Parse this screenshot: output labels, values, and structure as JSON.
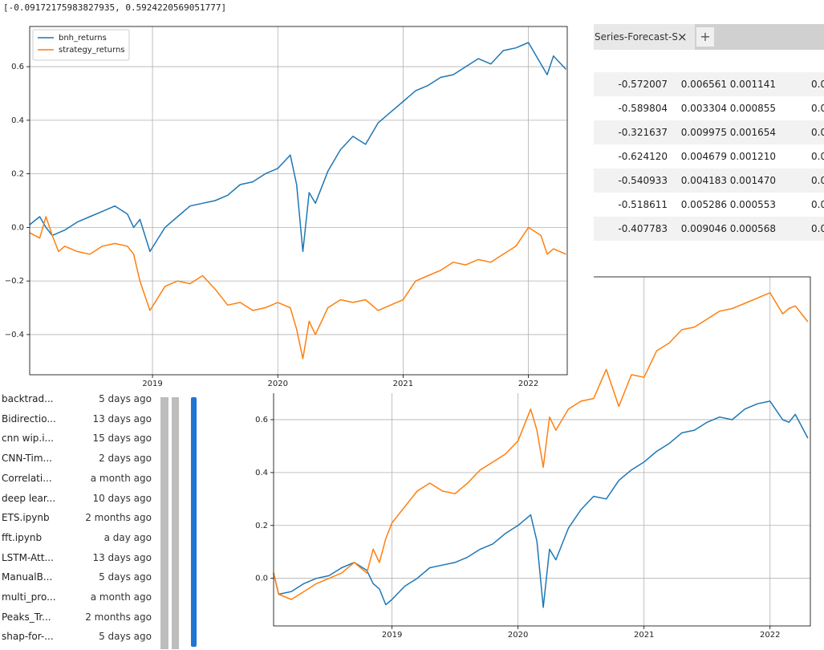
{
  "output_text": "[-0.09172175983827935, 0.5924220569051777]",
  "tab": {
    "title": "Series-Forecast-Se",
    "close": "×",
    "add": "+"
  },
  "table": {
    "rows": [
      [
        "-0.572007",
        "0.006561",
        "0.001141",
        "0.0"
      ],
      [
        "-0.589804",
        "0.003304",
        "0.000855",
        "0.0"
      ],
      [
        "-0.321637",
        "0.009975",
        "0.001654",
        "0.0"
      ],
      [
        "-0.624120",
        "0.004679",
        "0.001210",
        "0.0"
      ],
      [
        "-0.540933",
        "0.004183",
        "0.001470",
        "0.0"
      ],
      [
        "-0.518611",
        "0.005286",
        "0.000553",
        "0.0"
      ],
      [
        "-0.407783",
        "0.009046",
        "0.000568",
        "0.0"
      ]
    ]
  },
  "file_browser": {
    "files": [
      {
        "name": "backtrad...",
        "modified": "5 days ago"
      },
      {
        "name": "Bidirectio...",
        "modified": "13 days ago"
      },
      {
        "name": "cnn wip.i...",
        "modified": "15 days ago"
      },
      {
        "name": "CNN-Tim...",
        "modified": "2 days ago"
      },
      {
        "name": "Correlati...",
        "modified": "a month ago"
      },
      {
        "name": "deep lear...",
        "modified": "10 days ago"
      },
      {
        "name": "ETS.ipynb",
        "modified": "2 months ago"
      },
      {
        "name": "fft.ipynb",
        "modified": "a day ago"
      },
      {
        "name": "LSTM-Att...",
        "modified": "13 days ago"
      },
      {
        "name": "ManualB...",
        "modified": "5 days ago"
      },
      {
        "name": "multi_pro...",
        "modified": "a month ago"
      },
      {
        "name": "Peaks_Tr...",
        "modified": "2 months ago"
      },
      {
        "name": "shap-for-...",
        "modified": "5 days ago"
      }
    ]
  },
  "chart_data": [
    {
      "type": "line",
      "grid": true,
      "legend": "upper left",
      "xlim": [
        2018.02,
        2022.31
      ],
      "xticks": [
        2019,
        2020,
        2021,
        2022
      ],
      "ylim": [
        -0.55,
        0.75
      ],
      "yticks": [
        {
          "value": -0.4,
          "label": "−0.4"
        },
        {
          "value": -0.2,
          "label": "−0.2"
        },
        {
          "value": 0.0,
          "label": "0.0"
        },
        0.2,
        0.4,
        0.6
      ],
      "x": [
        2018.02,
        2018.1,
        2018.15,
        2018.2,
        2018.25,
        2018.3,
        2018.4,
        2018.5,
        2018.6,
        2018.7,
        2018.8,
        2018.85,
        2018.9,
        2018.98,
        2019.1,
        2019.2,
        2019.3,
        2019.4,
        2019.5,
        2019.6,
        2019.7,
        2019.8,
        2019.9,
        2020.0,
        2020.1,
        2020.15,
        2020.2,
        2020.25,
        2020.3,
        2020.4,
        2020.5,
        2020.6,
        2020.7,
        2020.8,
        2020.9,
        2021.0,
        2021.1,
        2021.2,
        2021.3,
        2021.4,
        2021.5,
        2021.6,
        2021.7,
        2021.8,
        2021.9,
        2022.0,
        2022.1,
        2022.15,
        2022.2,
        2022.3
      ],
      "series": [
        {
          "name": "bnh_returns",
          "color": "#1f77b4",
          "values": [
            0.01,
            0.04,
            0.0,
            -0.03,
            -0.02,
            -0.01,
            0.02,
            0.04,
            0.06,
            0.08,
            0.05,
            0.0,
            0.03,
            -0.09,
            0.0,
            0.04,
            0.08,
            0.09,
            0.1,
            0.12,
            0.16,
            0.17,
            0.2,
            0.22,
            0.27,
            0.16,
            -0.09,
            0.13,
            0.09,
            0.21,
            0.29,
            0.34,
            0.31,
            0.39,
            0.43,
            0.47,
            0.51,
            0.53,
            0.56,
            0.57,
            0.6,
            0.63,
            0.61,
            0.66,
            0.67,
            0.69,
            0.61,
            0.57,
            0.64,
            0.59
          ]
        },
        {
          "name": "strategy_returns",
          "color": "#ff7f0e",
          "values": [
            -0.02,
            -0.04,
            0.04,
            -0.03,
            -0.09,
            -0.07,
            -0.09,
            -0.1,
            -0.07,
            -0.06,
            -0.07,
            -0.1,
            -0.2,
            -0.31,
            -0.22,
            -0.2,
            -0.21,
            -0.18,
            -0.23,
            -0.29,
            -0.28,
            -0.31,
            -0.3,
            -0.28,
            -0.3,
            -0.38,
            -0.49,
            -0.35,
            -0.4,
            -0.3,
            -0.27,
            -0.28,
            -0.27,
            -0.31,
            -0.29,
            -0.27,
            -0.2,
            -0.18,
            -0.16,
            -0.13,
            -0.14,
            -0.12,
            -0.13,
            -0.1,
            -0.07,
            0.0,
            -0.03,
            -0.1,
            -0.08,
            -0.1
          ]
        }
      ]
    },
    {
      "type": "line",
      "grid": true,
      "xlim": [
        2018.06,
        2022.32
      ],
      "xticks": [
        2019,
        2020,
        2021,
        2022
      ],
      "ylim": [
        -0.18,
        1.14
      ],
      "yticks": [
        {
          "value": 0.0,
          "label": "0.0"
        },
        0.2,
        0.4,
        0.6
      ],
      "x": [
        2018.06,
        2018.1,
        2018.2,
        2018.3,
        2018.4,
        2018.5,
        2018.6,
        2018.7,
        2018.8,
        2018.85,
        2018.9,
        2018.95,
        2019.0,
        2019.1,
        2019.2,
        2019.3,
        2019.4,
        2019.5,
        2019.6,
        2019.7,
        2019.8,
        2019.9,
        2020.0,
        2020.1,
        2020.15,
        2020.2,
        2020.25,
        2020.3,
        2020.4,
        2020.5,
        2020.6,
        2020.7,
        2020.8,
        2020.9,
        2021.0,
        2021.1,
        2021.2,
        2021.3,
        2021.4,
        2021.5,
        2021.6,
        2021.7,
        2021.8,
        2021.9,
        2022.0,
        2022.1,
        2022.15,
        2022.2,
        2022.3
      ],
      "series": [
        {
          "color": "#1f77b4",
          "values": [
            0.02,
            -0.06,
            -0.05,
            -0.02,
            0.0,
            0.01,
            0.04,
            0.06,
            0.03,
            -0.02,
            -0.04,
            -0.1,
            -0.08,
            -0.03,
            0.0,
            0.04,
            0.05,
            0.06,
            0.08,
            0.11,
            0.13,
            0.17,
            0.2,
            0.24,
            0.14,
            -0.11,
            0.11,
            0.07,
            0.19,
            0.26,
            0.31,
            0.3,
            0.37,
            0.41,
            0.44,
            0.48,
            0.51,
            0.55,
            0.56,
            0.59,
            0.61,
            0.6,
            0.64,
            0.66,
            0.67,
            0.6,
            0.59,
            0.62,
            0.53
          ]
        },
        {
          "color": "#ff7f0e",
          "values": [
            0.02,
            -0.06,
            -0.08,
            -0.05,
            -0.02,
            0.0,
            0.02,
            0.06,
            0.02,
            0.11,
            0.06,
            0.15,
            0.21,
            0.27,
            0.33,
            0.36,
            0.33,
            0.32,
            0.36,
            0.41,
            0.44,
            0.47,
            0.52,
            0.64,
            0.56,
            0.42,
            0.61,
            0.56,
            0.64,
            0.67,
            0.68,
            0.79,
            0.65,
            0.77,
            0.76,
            0.86,
            0.89,
            0.94,
            0.95,
            0.98,
            1.01,
            1.02,
            1.04,
            1.06,
            1.08,
            1.0,
            1.02,
            1.03,
            0.97
          ]
        }
      ]
    }
  ]
}
